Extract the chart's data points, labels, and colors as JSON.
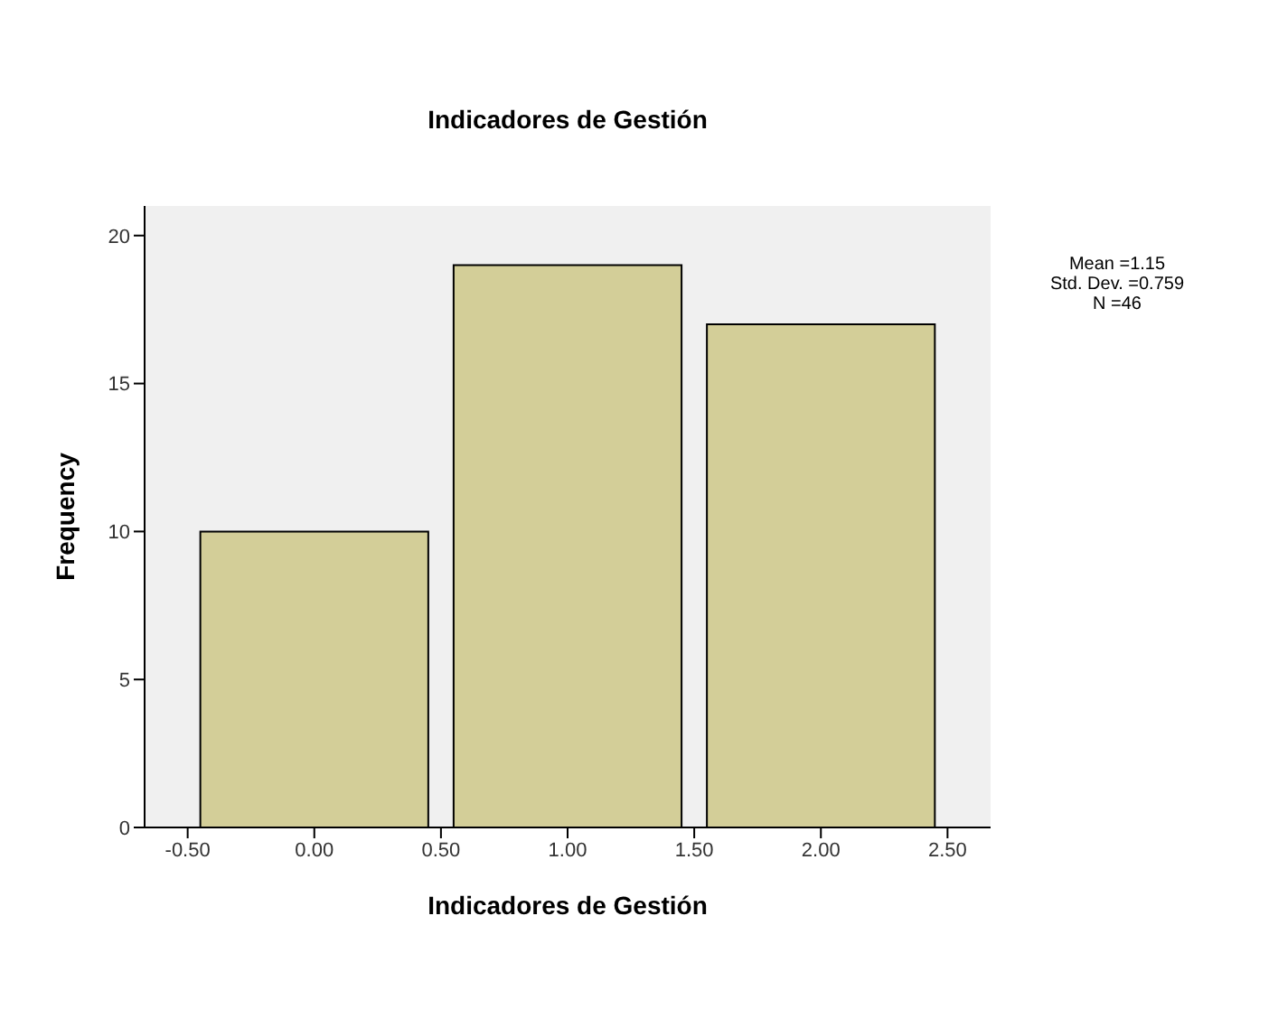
{
  "chart_data": {
    "type": "histogram",
    "title": "Indicadores de Gestión",
    "xlabel": "Indicadores de Gestión",
    "ylabel": "Frequency",
    "bins": [
      -0.5,
      0.5,
      1.5,
      2.5
    ],
    "values": [
      10,
      19,
      17
    ],
    "color": "#d3ce98",
    "xlim": [
      -0.67,
      2.67
    ],
    "xticks": [
      {
        "value": -0.5,
        "label": "-0.50"
      },
      {
        "value": 0,
        "label": "0.00"
      },
      {
        "value": 0.5,
        "label": "0.50"
      },
      {
        "value": 1,
        "label": "1.00"
      },
      {
        "value": 1.5,
        "label": "1.50"
      },
      {
        "value": 2,
        "label": "2.00"
      },
      {
        "value": 2.5,
        "label": "2.50"
      }
    ],
    "ylim": [
      0,
      21
    ],
    "yticks": [
      0,
      5,
      10,
      15,
      20
    ],
    "annotations": [
      "Mean =1.15",
      "Std. Dev. =0.759",
      "N =46"
    ]
  }
}
